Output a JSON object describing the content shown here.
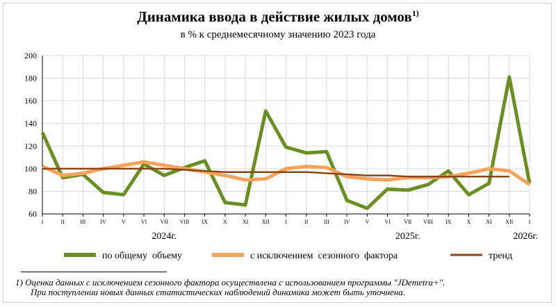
{
  "chart_data": {
    "type": "line",
    "title": "Динамика ввода в действие жилых домов",
    "title_note": "1)",
    "subtitle": "в % к среднемесячному значению 2023  года",
    "ylim": [
      60,
      200
    ],
    "yticks": [
      60,
      80,
      100,
      120,
      140,
      160,
      180,
      200
    ],
    "categories": [
      "I",
      "II",
      "III",
      "IV",
      "V",
      "VI",
      "VII",
      "VIII",
      "IX",
      "X",
      "XI",
      "XII",
      "I",
      "II",
      "III",
      "IV",
      "V",
      "VI",
      "VII",
      "VIII",
      "IX",
      "X",
      "XI",
      "XII",
      "I"
    ],
    "year_labels": [
      "2024г.",
      "2025г.",
      "2026г."
    ],
    "grid": true,
    "legend_position": "bottom",
    "series": [
      {
        "name": "по общему  объему",
        "color": "#6b8e23",
        "values": [
          132,
          92,
          95,
          79,
          77,
          104,
          94,
          101,
          107,
          70,
          68,
          151,
          119,
          114,
          115,
          72,
          65,
          82,
          81,
          86,
          98,
          77,
          87,
          181,
          87
        ]
      },
      {
        "name": "с исключением  сезонного  фактора",
        "color": "#f7a35c",
        "values": [
          102,
          94,
          96,
          100,
          103,
          106,
          103,
          100,
          97,
          94,
          90,
          91,
          100,
          102,
          101,
          93,
          91,
          90,
          92,
          92,
          93,
          96,
          100,
          98,
          86
        ]
      },
      {
        "name": "тренд",
        "color": "#8b4513",
        "values": [
          100,
          100,
          100,
          100,
          100,
          100,
          100,
          99,
          98,
          97,
          97,
          97,
          97,
          97,
          96,
          95,
          94,
          94,
          93,
          93,
          93,
          93,
          93,
          93,
          null
        ]
      }
    ]
  },
  "footnote": {
    "line1": "1)  Оценка данных с исключением сезонного фактора осуществлена с использованием программы \"JDemetra+\".",
    "line2": "При поступлении новых данных статистических наблюдений динамика может быть уточнена."
  }
}
